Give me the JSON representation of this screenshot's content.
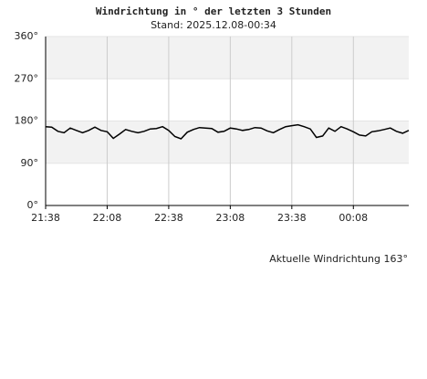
{
  "chart_data": {
    "type": "line",
    "title": "Windrichtung in ° der letzten 3 Stunden",
    "subtitle": "Stand: 2025.12.08-00:34",
    "annotation": "Aktuelle Windrichtung 163°",
    "x": [
      "21:38",
      "21:41",
      "21:44",
      "21:47",
      "21:50",
      "21:53",
      "21:56",
      "21:59",
      "22:02",
      "22:05",
      "22:08",
      "22:11",
      "22:14",
      "22:17",
      "22:20",
      "22:23",
      "22:26",
      "22:29",
      "22:32",
      "22:35",
      "22:38",
      "22:41",
      "22:44",
      "22:47",
      "22:50",
      "22:53",
      "22:56",
      "22:59",
      "23:02",
      "23:05",
      "23:08",
      "23:11",
      "23:14",
      "23:17",
      "23:20",
      "23:23",
      "23:26",
      "23:29",
      "23:32",
      "23:35",
      "23:38",
      "23:41",
      "23:44",
      "23:47",
      "23:50",
      "23:53",
      "23:56",
      "23:59",
      "00:02",
      "00:05",
      "00:08",
      "00:11",
      "00:14",
      "00:17",
      "00:20",
      "00:23",
      "00:26",
      "00:29",
      "00:32",
      "00:35"
    ],
    "series": [
      {
        "name": "Windrichtung",
        "color": "#000000",
        "values": [
          168,
          167,
          158,
          155,
          165,
          160,
          155,
          160,
          167,
          160,
          157,
          143,
          152,
          162,
          158,
          155,
          158,
          163,
          164,
          168,
          160,
          147,
          142,
          156,
          162,
          166,
          165,
          164,
          156,
          158,
          165,
          163,
          160,
          162,
          166,
          165,
          159,
          155,
          162,
          168,
          170,
          172,
          168,
          163,
          145,
          148,
          165,
          158,
          168,
          163,
          157,
          150,
          148,
          157,
          159,
          162,
          165,
          158,
          154,
          160
        ]
      }
    ],
    "xlim": [
      "21:38",
      "00:35"
    ],
    "xticks": [
      "21:38",
      "22:08",
      "22:38",
      "23:08",
      "23:38",
      "00:08"
    ],
    "ylim": [
      0,
      360
    ],
    "yticks": [
      {
        "value": 0,
        "label": "0°"
      },
      {
        "value": 90,
        "label": "90°"
      },
      {
        "value": 180,
        "label": "180°"
      },
      {
        "value": 270,
        "label": "270°"
      },
      {
        "value": 360,
        "label": "360°"
      }
    ],
    "grid": true,
    "alternate_shading": true
  }
}
